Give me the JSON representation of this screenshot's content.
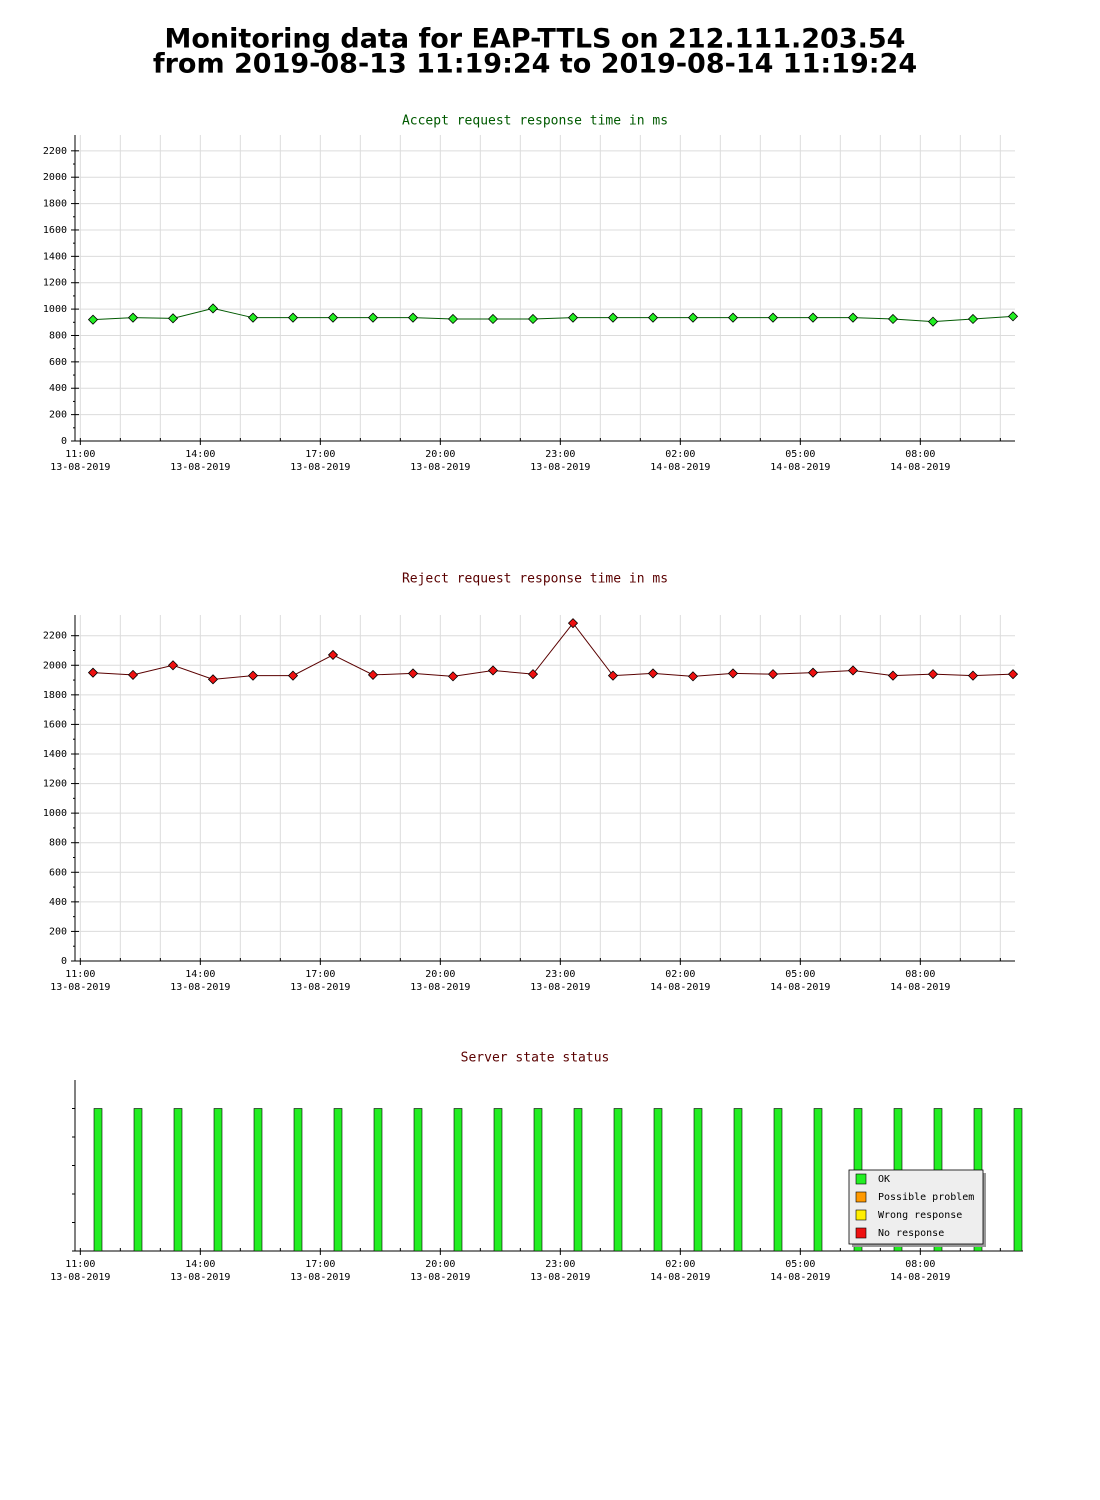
{
  "header": {
    "title": "Monitoring data for EAP-TTLS on 212.111.203.54",
    "subtitle": "from 2019-08-13 11:19:24 to 2019-08-14 11:19:24"
  },
  "chart_data": [
    {
      "type": "line",
      "title": "Accept request response time in ms",
      "title_color": "#005a00",
      "x": [
        "2019-08-13 11:19",
        "2019-08-13 12:19",
        "2019-08-13 13:19",
        "2019-08-13 14:19",
        "2019-08-13 15:19",
        "2019-08-13 16:19",
        "2019-08-13 17:19",
        "2019-08-13 18:19",
        "2019-08-13 19:19",
        "2019-08-13 20:19",
        "2019-08-13 21:19",
        "2019-08-13 22:19",
        "2019-08-13 23:19",
        "2019-08-14 00:19",
        "2019-08-14 01:19",
        "2019-08-14 02:19",
        "2019-08-14 03:19",
        "2019-08-14 04:19",
        "2019-08-14 05:19",
        "2019-08-14 06:19",
        "2019-08-14 07:19",
        "2019-08-14 08:19",
        "2019-08-14 09:19",
        "2019-08-14 10:19"
      ],
      "values": [
        920,
        935,
        930,
        1005,
        935,
        935,
        935,
        935,
        935,
        925,
        925,
        925,
        935,
        935,
        935,
        935,
        935,
        935,
        935,
        935,
        925,
        905,
        925,
        945
      ],
      "color": "#005a00",
      "marker_color": "#22ee22",
      "xlim": [
        "2019-08-13 10:52",
        "2019-08-14 10:22"
      ],
      "xticks": [
        {
          "value": "2019-08-13 11:00",
          "label": "11:00",
          "date": "13-08-2019"
        },
        {
          "value": "2019-08-13 14:00",
          "label": "14:00",
          "date": "13-08-2019"
        },
        {
          "value": "2019-08-13 17:00",
          "label": "17:00",
          "date": "13-08-2019"
        },
        {
          "value": "2019-08-13 20:00",
          "label": "20:00",
          "date": "13-08-2019"
        },
        {
          "value": "2019-08-13 23:00",
          "label": "23:00",
          "date": "13-08-2019"
        },
        {
          "value": "2019-08-14 02:00",
          "label": "02:00",
          "date": "14-08-2019"
        },
        {
          "value": "2019-08-14 05:00",
          "label": "05:00",
          "date": "14-08-2019"
        },
        {
          "value": "2019-08-14 08:00",
          "label": "08:00",
          "date": "14-08-2019"
        }
      ],
      "ylim": [
        0,
        2320
      ],
      "yticks": [
        0,
        200,
        400,
        600,
        800,
        1000,
        1200,
        1400,
        1600,
        1800,
        2000,
        2200
      ],
      "grid": true
    },
    {
      "type": "line",
      "title": "Reject request response time in ms",
      "title_color": "#5a0000",
      "x": [
        "2019-08-13 11:19",
        "2019-08-13 12:19",
        "2019-08-13 13:19",
        "2019-08-13 14:19",
        "2019-08-13 15:19",
        "2019-08-13 16:19",
        "2019-08-13 17:19",
        "2019-08-13 18:19",
        "2019-08-13 19:19",
        "2019-08-13 20:19",
        "2019-08-13 21:19",
        "2019-08-13 22:19",
        "2019-08-13 23:19",
        "2019-08-14 00:19",
        "2019-08-14 01:19",
        "2019-08-14 02:19",
        "2019-08-14 03:19",
        "2019-08-14 04:19",
        "2019-08-14 05:19",
        "2019-08-14 06:19",
        "2019-08-14 07:19",
        "2019-08-14 08:19",
        "2019-08-14 09:19",
        "2019-08-14 10:19"
      ],
      "values": [
        1950,
        1935,
        2000,
        1905,
        1930,
        1930,
        2070,
        1935,
        1945,
        1925,
        1965,
        1940,
        2285,
        1930,
        1945,
        1925,
        1945,
        1940,
        1950,
        1965,
        1930,
        1940,
        1930,
        1940
      ],
      "color": "#5a0000",
      "marker_color": "#ee1111",
      "xlim": [
        "2019-08-13 10:52",
        "2019-08-14 10:22"
      ],
      "xticks": [
        {
          "value": "2019-08-13 11:00",
          "label": "11:00",
          "date": "13-08-2019"
        },
        {
          "value": "2019-08-13 14:00",
          "label": "14:00",
          "date": "13-08-2019"
        },
        {
          "value": "2019-08-13 17:00",
          "label": "17:00",
          "date": "13-08-2019"
        },
        {
          "value": "2019-08-13 20:00",
          "label": "20:00",
          "date": "13-08-2019"
        },
        {
          "value": "2019-08-13 23:00",
          "label": "23:00",
          "date": "13-08-2019"
        },
        {
          "value": "2019-08-14 02:00",
          "label": "02:00",
          "date": "14-08-2019"
        },
        {
          "value": "2019-08-14 05:00",
          "label": "05:00",
          "date": "14-08-2019"
        },
        {
          "value": "2019-08-14 08:00",
          "label": "08:00",
          "date": "14-08-2019"
        }
      ],
      "ylim": [
        0,
        2340
      ],
      "yticks": [
        0,
        200,
        400,
        600,
        800,
        1000,
        1200,
        1400,
        1600,
        1800,
        2000,
        2200
      ],
      "grid": true
    },
    {
      "type": "bar",
      "title": "Server state status",
      "title_color": "#5a0000",
      "x": [
        "2019-08-13 11:19",
        "2019-08-13 12:19",
        "2019-08-13 13:19",
        "2019-08-13 14:19",
        "2019-08-13 15:19",
        "2019-08-13 16:19",
        "2019-08-13 17:19",
        "2019-08-13 18:19",
        "2019-08-13 19:19",
        "2019-08-13 20:19",
        "2019-08-13 21:19",
        "2019-08-13 22:19",
        "2019-08-13 23:19",
        "2019-08-14 00:19",
        "2019-08-14 01:19",
        "2019-08-14 02:19",
        "2019-08-14 03:19",
        "2019-08-14 04:19",
        "2019-08-14 05:19",
        "2019-08-14 06:19",
        "2019-08-14 07:19",
        "2019-08-14 08:19",
        "2019-08-14 09:19",
        "2019-08-14 10:19"
      ],
      "values": [
        1,
        1,
        1,
        1,
        1,
        1,
        1,
        1,
        1,
        1,
        1,
        1,
        1,
        1,
        1,
        1,
        1,
        1,
        1,
        1,
        1,
        1,
        1,
        1
      ],
      "color": "#22ee22",
      "xlim": [
        "2019-08-13 10:52",
        "2019-08-14 10:22"
      ],
      "xticks": [
        {
          "value": "2019-08-13 11:00",
          "label": "11:00",
          "date": "13-08-2019"
        },
        {
          "value": "2019-08-13 14:00",
          "label": "14:00",
          "date": "13-08-2019"
        },
        {
          "value": "2019-08-13 17:00",
          "label": "17:00",
          "date": "13-08-2019"
        },
        {
          "value": "2019-08-13 20:00",
          "label": "20:00",
          "date": "13-08-2019"
        },
        {
          "value": "2019-08-13 23:00",
          "label": "23:00",
          "date": "13-08-2019"
        },
        {
          "value": "2019-08-14 02:00",
          "label": "02:00",
          "date": "14-08-2019"
        },
        {
          "value": "2019-08-14 05:00",
          "label": "05:00",
          "date": "14-08-2019"
        },
        {
          "value": "2019-08-14 08:00",
          "label": "08:00",
          "date": "14-08-2019"
        }
      ],
      "ylim": [
        0,
        1.2
      ],
      "legend": [
        {
          "name": "OK",
          "color": "#22ee22"
        },
        {
          "name": "Possible problem",
          "color": "#ff9900"
        },
        {
          "name": "Wrong response",
          "color": "#ffee00"
        },
        {
          "name": "No response",
          "color": "#ee1111"
        }
      ]
    }
  ]
}
